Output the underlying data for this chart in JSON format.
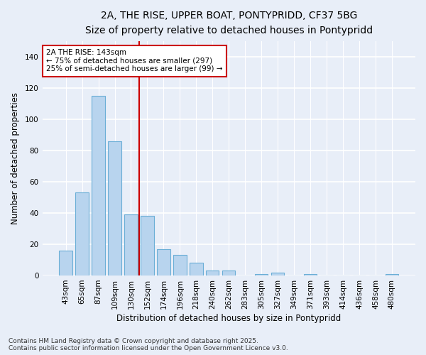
{
  "title_line1": "2A, THE RISE, UPPER BOAT, PONTYPRIDD, CF37 5BG",
  "title_line2": "Size of property relative to detached houses in Pontypridd",
  "xlabel": "Distribution of detached houses by size in Pontypridd",
  "ylabel": "Number of detached properties",
  "categories": [
    "43sqm",
    "65sqm",
    "87sqm",
    "109sqm",
    "130sqm",
    "152sqm",
    "174sqm",
    "196sqm",
    "218sqm",
    "240sqm",
    "262sqm",
    "283sqm",
    "305sqm",
    "327sqm",
    "349sqm",
    "371sqm",
    "393sqm",
    "414sqm",
    "436sqm",
    "458sqm",
    "480sqm"
  ],
  "values": [
    16,
    53,
    115,
    86,
    39,
    38,
    17,
    13,
    8,
    3,
    3,
    0,
    1,
    2,
    0,
    1,
    0,
    0,
    0,
    0,
    1
  ],
  "bar_color": "#b8d4ee",
  "bar_edge_color": "#6aaed6",
  "vline_color": "#cc0000",
  "vline_x_index": 4.5,
  "annotation_line1": "2A THE RISE: 143sqm",
  "annotation_line2": "← 75% of detached houses are smaller (297)",
  "annotation_line3": "25% of semi-detached houses are larger (99) →",
  "annotation_box_color": "#ffffff",
  "annotation_box_edge_color": "#cc0000",
  "ylim": [
    0,
    150
  ],
  "yticks": [
    0,
    20,
    40,
    60,
    80,
    100,
    120,
    140
  ],
  "footer_line1": "Contains HM Land Registry data © Crown copyright and database right 2025.",
  "footer_line2": "Contains public sector information licensed under the Open Government Licence v3.0.",
  "background_color": "#e8eef8",
  "plot_background_color": "#e8eef8",
  "grid_color": "#ffffff",
  "title_fontsize": 10,
  "subtitle_fontsize": 9.5,
  "axis_label_fontsize": 8.5,
  "tick_fontsize": 7.5,
  "annotation_fontsize": 7.5,
  "footer_fontsize": 6.5,
  "bar_width": 0.8
}
